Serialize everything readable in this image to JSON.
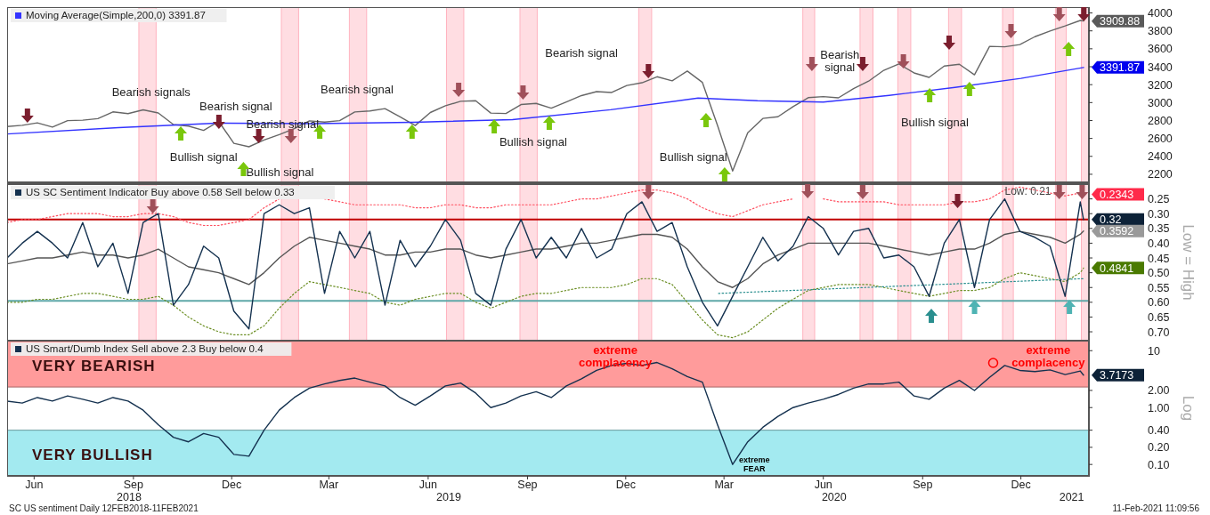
{
  "chart_data": [
    {
      "type": "line",
      "xlim": [
        "2018-05-21",
        "2021-02-16"
      ],
      "ylim": [
        2110,
        4065
      ],
      "yticks": [
        2200,
        2400,
        2600,
        2800,
        3000,
        3200,
        3400,
        3600,
        3800,
        4000
      ],
      "tick_labels": "y",
      "legend": "top left",
      "x": [
        "2018-05-21",
        "2018-06-04",
        "2018-06-18",
        "2018-07-02",
        "2018-07-16",
        "2018-07-30",
        "2018-08-13",
        "2018-08-27",
        "2018-09-10",
        "2018-09-24",
        "2018-10-08",
        "2018-10-22",
        "2018-11-05",
        "2018-11-19",
        "2018-12-03",
        "2018-12-17",
        "2018-12-31",
        "2019-01-14",
        "2019-01-28",
        "2019-02-11",
        "2019-02-25",
        "2019-03-11",
        "2019-03-25",
        "2019-04-08",
        "2019-04-22",
        "2019-05-06",
        "2019-05-20",
        "2019-06-03",
        "2019-06-17",
        "2019-07-01",
        "2019-07-15",
        "2019-07-29",
        "2019-08-12",
        "2019-08-26",
        "2019-09-09",
        "2019-09-23",
        "2019-10-07",
        "2019-10-21",
        "2019-11-04",
        "2019-11-18",
        "2019-12-02",
        "2019-12-16",
        "2019-12-30",
        "2020-01-13",
        "2020-01-27",
        "2020-02-10",
        "2020-02-24",
        "2020-03-09",
        "2020-03-23",
        "2020-04-06",
        "2020-04-20",
        "2020-05-04",
        "2020-05-18",
        "2020-06-01",
        "2020-06-15",
        "2020-06-29",
        "2020-07-13",
        "2020-07-27",
        "2020-08-10",
        "2020-08-24",
        "2020-09-07",
        "2020-09-21",
        "2020-10-05",
        "2020-10-19",
        "2020-11-02",
        "2020-11-16",
        "2020-11-30",
        "2020-12-14",
        "2020-12-28",
        "2021-01-11",
        "2021-01-25",
        "2021-02-08",
        "2021-02-11"
      ],
      "series": [
        {
          "color": "#666666",
          "values": [
            2733,
            2746,
            2774,
            2726,
            2798,
            2803,
            2821,
            2896,
            2877,
            2919,
            2884,
            2755,
            2738,
            2690,
            2790,
            2546,
            2507,
            2582,
            2643,
            2709,
            2796,
            2783,
            2798,
            2895,
            2907,
            2932,
            2840,
            2744,
            2889,
            2964,
            3014,
            3020,
            2883,
            2878,
            2978,
            2991,
            2938,
            3006,
            3078,
            3122,
            3113,
            3191,
            3221,
            3288,
            3243,
            3352,
            3225,
            2746,
            2237,
            2664,
            2823,
            2842,
            2954,
            3055,
            3066,
            3053,
            3155,
            3239,
            3360,
            3431,
            3331,
            3281,
            3408,
            3427,
            3310,
            3627,
            3622,
            3647,
            3735,
            3799,
            3855,
            3916,
            3909.88
          ]
        },
        {
          "name": "Moving Average(Simple,200,0) 3391.87",
          "color": "#3333ff",
          "x": [
            "2018-05-21",
            "2018-09-01",
            "2018-12-01",
            "2019-03-01",
            "2019-06-01",
            "2019-09-01",
            "2019-12-01",
            "2020-02-20",
            "2020-04-15",
            "2020-06-15",
            "2020-08-15",
            "2020-10-15",
            "2020-12-15",
            "2021-02-11"
          ],
          "values": [
            2650,
            2720,
            2770,
            2765,
            2780,
            2810,
            2920,
            3050,
            3020,
            3005,
            3080,
            3170,
            3270,
            3391.87
          ]
        }
      ],
      "bands": [
        {
          "axis": "x",
          "from": "2018-09-20",
          "to": "2018-10-06",
          "color": "#ffdde2"
        },
        {
          "axis": "x",
          "from": "2019-01-30",
          "to": "2019-02-15",
          "color": "#ffdde2"
        },
        {
          "axis": "x",
          "from": "2019-04-03",
          "to": "2019-04-19",
          "color": "#ffdde2"
        },
        {
          "axis": "x",
          "from": "2019-07-02",
          "to": "2019-07-18",
          "color": "#ffdde2"
        },
        {
          "axis": "x",
          "from": "2019-09-08",
          "to": "2019-09-24",
          "color": "#ffdde2"
        },
        {
          "axis": "x",
          "from": "2019-12-27",
          "to": "2020-01-08",
          "color": "#ffdde2"
        },
        {
          "axis": "x",
          "from": "2020-05-27",
          "to": "2020-06-07",
          "color": "#ffdde2"
        },
        {
          "axis": "x",
          "from": "2020-07-19",
          "to": "2020-07-31",
          "color": "#ffdde2"
        },
        {
          "axis": "x",
          "from": "2020-08-23",
          "to": "2020-09-04",
          "color": "#ffdde2"
        },
        {
          "axis": "x",
          "from": "2020-10-09",
          "to": "2020-10-21",
          "color": "#ffdde2"
        },
        {
          "axis": "x",
          "from": "2020-11-28",
          "to": "2020-12-08",
          "color": "#ffdde2"
        },
        {
          "axis": "x",
          "from": "2021-01-16",
          "to": "2021-01-26",
          "color": "#ffdde2"
        },
        {
          "axis": "x",
          "from": "2021-02-09",
          "to": "2021-02-16",
          "color": "#ffdde2"
        }
      ],
      "annotations": [
        "Bearish signals",
        "Bearish signal",
        "Bullish signal",
        "Bearish signal",
        "Bullish signal",
        "Bearish signal",
        "Bearish signal",
        "Bullish signal",
        "Bullish signal",
        "Bearish\nsignal",
        "Bullish signal",
        {
          "text": "3909.88",
          "x": "2021-02-11",
          "y": 3909.88
        },
        {
          "text": "3391.87",
          "x": "2021-02-11",
          "y": 3391.87
        }
      ]
    },
    {
      "type": "line",
      "xlim": [
        "2018-05-21",
        "2021-02-16"
      ],
      "ylim": [
        0.73,
        0.2
      ],
      "yticks": [
        0.25,
        {
          "value": 0.3,
          "label": "0.30"
        },
        0.35,
        {
          "value": 0.4,
          "label": "0.40"
        },
        0.45,
        {
          "value": 0.5,
          "label": "0.50"
        },
        0.55,
        {
          "value": 0.6,
          "label": "0.60"
        },
        0.65,
        {
          "value": 0.7,
          "label": "0.70"
        }
      ],
      "tick_labels": "y",
      "legend": "top left",
      "ylabel": "Low = High",
      "x": [
        "2018-05-21",
        "2018-06-04",
        "2018-06-18",
        "2018-07-02",
        "2018-07-16",
        "2018-07-30",
        "2018-08-13",
        "2018-08-27",
        "2018-09-10",
        "2018-09-24",
        "2018-10-08",
        "2018-10-22",
        "2018-11-05",
        "2018-11-19",
        "2018-12-03",
        "2018-12-17",
        "2018-12-31",
        "2019-01-14",
        "2019-01-28",
        "2019-02-11",
        "2019-02-25",
        "2019-03-11",
        "2019-03-25",
        "2019-04-08",
        "2019-04-22",
        "2019-05-06",
        "2019-05-20",
        "2019-06-03",
        "2019-06-17",
        "2019-07-01",
        "2019-07-15",
        "2019-07-29",
        "2019-08-12",
        "2019-08-26",
        "2019-09-09",
        "2019-09-23",
        "2019-10-07",
        "2019-10-21",
        "2019-11-04",
        "2019-11-18",
        "2019-12-02",
        "2019-12-16",
        "2019-12-30",
        "2020-01-13",
        "2020-01-27",
        "2020-02-10",
        "2020-02-24",
        "2020-03-09",
        "2020-03-23",
        "2020-04-06",
        "2020-04-20",
        "2020-05-04",
        "2020-05-18",
        "2020-06-01",
        "2020-06-15",
        "2020-06-29",
        "2020-07-13",
        "2020-07-27",
        "2020-08-10",
        "2020-08-24",
        "2020-09-07",
        "2020-09-21",
        "2020-10-05",
        "2020-10-19",
        "2020-11-02",
        "2020-11-16",
        "2020-11-30",
        "2020-12-14",
        "2020-12-28",
        "2021-01-11",
        "2021-01-25",
        "2021-02-08",
        "2021-02-11"
      ],
      "series": [
        {
          "color": "#ff4d5e",
          "line_style": "dotted",
          "values": [
            0.33,
            0.32,
            0.32,
            0.31,
            0.3,
            0.3,
            0.3,
            0.31,
            0.31,
            0.3,
            0.3,
            0.31,
            0.33,
            0.34,
            0.34,
            0.33,
            0.32,
            0.28,
            0.25,
            null,
            null,
            0.25,
            0.26,
            0.27,
            0.27,
            0.27,
            0.27,
            0.28,
            0.28,
            0.27,
            0.27,
            0.28,
            0.28,
            0.27,
            0.27,
            0.27,
            0.27,
            0.26,
            0.25,
            0.25,
            0.24,
            0.23,
            0.22,
            0.22,
            0.23,
            0.25,
            0.28,
            0.3,
            0.31,
            0.29,
            0.27,
            0.26,
            0.25,
            null,
            0.25,
            0.26,
            0.26,
            0.26,
            0.26,
            0.27,
            0.27,
            0.27,
            0.27,
            0.26,
            0.26,
            0.25,
            0.22,
            0.21,
            0.22,
            0.23,
            0.24,
            0.23,
            0.2343
          ]
        },
        {
          "color": "#6b8e23",
          "line_style": "dotted",
          "values": [
            0.6,
            0.6,
            0.59,
            0.59,
            0.58,
            0.57,
            0.57,
            0.58,
            0.59,
            0.59,
            0.58,
            0.61,
            0.65,
            0.68,
            0.7,
            0.71,
            0.71,
            0.68,
            0.62,
            0.57,
            0.53,
            0.54,
            0.55,
            0.56,
            0.57,
            0.6,
            0.61,
            0.59,
            0.58,
            0.57,
            0.57,
            0.6,
            0.62,
            0.6,
            0.58,
            0.57,
            0.57,
            0.56,
            0.55,
            0.55,
            0.55,
            0.54,
            0.52,
            0.52,
            0.54,
            0.6,
            0.66,
            0.71,
            0.72,
            0.7,
            0.66,
            0.62,
            0.59,
            0.56,
            0.55,
            0.54,
            0.54,
            0.54,
            0.55,
            0.56,
            0.57,
            0.58,
            0.57,
            0.56,
            0.56,
            0.55,
            0.52,
            0.5,
            0.51,
            0.52,
            0.53,
            0.5,
            0.4841
          ]
        },
        {
          "color": "#555555",
          "values": [
            0.47,
            0.46,
            0.45,
            0.45,
            0.44,
            0.43,
            0.44,
            0.44,
            0.45,
            0.44,
            0.42,
            0.45,
            0.48,
            0.49,
            0.5,
            0.52,
            0.54,
            0.5,
            0.45,
            0.41,
            0.38,
            0.39,
            0.4,
            0.41,
            0.42,
            0.44,
            0.44,
            0.43,
            0.43,
            0.42,
            0.42,
            0.44,
            0.45,
            0.44,
            0.43,
            0.42,
            0.42,
            0.41,
            0.4,
            0.4,
            0.39,
            0.38,
            0.37,
            0.37,
            0.38,
            0.42,
            0.48,
            0.53,
            0.55,
            0.52,
            0.47,
            0.44,
            0.42,
            0.4,
            0.4,
            0.4,
            0.4,
            0.4,
            0.41,
            0.42,
            0.43,
            0.44,
            0.43,
            0.42,
            0.42,
            0.4,
            0.37,
            0.36,
            0.37,
            0.38,
            0.4,
            0.37,
            0.3592
          ]
        },
        {
          "color": "#2a8f8f",
          "line_style": "dotted",
          "x": [
            "2020-03-10",
            "2021-02-11"
          ],
          "values": [
            0.57,
            0.52
          ]
        },
        {
          "name": "US SC Sentiment Indicator Buy above 0.58 Sell below 0.33",
          "color": "#14314f",
          "values": [
            0.45,
            0.4,
            0.36,
            0.4,
            0.45,
            0.33,
            0.48,
            0.4,
            0.57,
            0.33,
            0.3,
            0.61,
            0.54,
            0.41,
            0.45,
            0.63,
            0.69,
            0.3,
            0.27,
            0.3,
            0.28,
            0.57,
            0.36,
            0.45,
            0.36,
            0.61,
            0.39,
            0.48,
            0.41,
            0.32,
            0.39,
            0.57,
            0.61,
            0.42,
            0.32,
            0.45,
            0.38,
            0.45,
            0.35,
            0.45,
            0.42,
            0.3,
            0.26,
            0.36,
            0.33,
            0.48,
            0.6,
            0.68,
            0.58,
            0.48,
            0.38,
            0.46,
            0.41,
            0.31,
            0.35,
            0.44,
            0.36,
            0.35,
            0.45,
            0.44,
            0.48,
            0.58,
            0.4,
            0.32,
            0.55,
            0.32,
            0.25,
            0.36,
            0.38,
            0.41,
            0.58,
            0.26,
            0.32
          ]
        }
      ],
      "bands": [
        {
          "axis": "x",
          "from": "2018-09-20",
          "to": "2018-10-06",
          "color": "#ffdde2"
        },
        {
          "axis": "x",
          "from": "2019-01-30",
          "to": "2019-02-15",
          "color": "#ffdde2"
        },
        {
          "axis": "x",
          "from": "2019-04-03",
          "to": "2019-04-19",
          "color": "#ffdde2"
        },
        {
          "axis": "x",
          "from": "2019-07-02",
          "to": "2019-07-18",
          "color": "#ffdde2"
        },
        {
          "axis": "x",
          "from": "2019-09-08",
          "to": "2019-09-24",
          "color": "#ffdde2"
        },
        {
          "axis": "x",
          "from": "2019-12-27",
          "to": "2020-01-08",
          "color": "#ffdde2"
        },
        {
          "axis": "x",
          "from": "2020-05-27",
          "to": "2020-06-07",
          "color": "#ffdde2"
        },
        {
          "axis": "x",
          "from": "2020-07-19",
          "to": "2020-07-31",
          "color": "#ffdde2"
        },
        {
          "axis": "x",
          "from": "2020-08-23",
          "to": "2020-09-04",
          "color": "#ffdde2"
        },
        {
          "axis": "x",
          "from": "2020-10-09",
          "to": "2020-10-21",
          "color": "#ffdde2"
        },
        {
          "axis": "x",
          "from": "2020-11-28",
          "to": "2020-12-08",
          "color": "#ffdde2"
        },
        {
          "axis": "x",
          "from": "2021-01-16",
          "to": "2021-01-26",
          "color": "#ffdde2"
        },
        {
          "axis": "x",
          "from": "2021-02-09",
          "to": "2021-02-16",
          "color": "#ffdde2"
        }
      ],
      "ref_lines": [
        {
          "axis": "y",
          "value": 0.32,
          "color": "#c00000"
        },
        {
          "axis": "y",
          "value": 0.595,
          "color": "#5fa8a8"
        }
      ],
      "annotations": [
        "Low: 0.21",
        {
          "text": "0.2343",
          "x": "2021-02-11",
          "y": 0.2343
        },
        {
          "text": "0.32",
          "x": "2021-02-11",
          "y": 0.32
        },
        {
          "text": "0.3592",
          "x": "2021-02-11",
          "y": 0.3592
        },
        {
          "text": "0.4841",
          "x": "2021-02-11",
          "y": 0.4841
        }
      ]
    },
    {
      "type": "line",
      "log": true,
      "xlim": [
        "2018-05-21",
        "2021-02-16"
      ],
      "ylim": [
        0.063,
        15
      ],
      "yticks": [
        10,
        {
          "value": 2,
          "label": "2.00"
        },
        {
          "value": 1,
          "label": "1.00"
        },
        {
          "value": 0.4,
          "label": "0.40"
        },
        {
          "value": 0.2,
          "label": "0.20"
        },
        {
          "value": 0.1,
          "label": "0.10"
        }
      ],
      "legend": "top left",
      "ylabel": "Log",
      "x2lim": [
        "2018-05-21",
        "2021-02-16"
      ],
      "x2ticks": [
        {
          "value": "2018-09-11",
          "label": "2018"
        },
        {
          "value": "2019-07-04",
          "label": "2019"
        },
        {
          "value": "2020-06-25",
          "label": "2020"
        },
        {
          "value": "2021-01-31",
          "label": "2021"
        }
      ],
      "xticks": [
        {
          "value": "2018-06-15",
          "label": "Jun"
        },
        {
          "value": "2018-09-15",
          "label": "Sep"
        },
        {
          "value": "2018-12-15",
          "label": "Dec"
        },
        {
          "value": "2019-03-15",
          "label": "Mar"
        },
        {
          "value": "2019-06-15",
          "label": "Jun"
        },
        {
          "value": "2019-09-15",
          "label": "Sep"
        },
        {
          "value": "2019-12-15",
          "label": "Dec"
        },
        {
          "value": "2020-03-15",
          "label": "Mar"
        },
        {
          "value": "2020-06-15",
          "label": "Jun"
        },
        {
          "value": "2020-09-15",
          "label": "Sep"
        },
        {
          "value": "2020-12-15",
          "label": "Dec"
        }
      ],
      "x": [
        "2018-05-21",
        "2018-06-04",
        "2018-06-18",
        "2018-07-02",
        "2018-07-16",
        "2018-07-30",
        "2018-08-13",
        "2018-08-27",
        "2018-09-10",
        "2018-09-24",
        "2018-10-08",
        "2018-10-22",
        "2018-11-05",
        "2018-11-19",
        "2018-12-03",
        "2018-12-17",
        "2018-12-31",
        "2019-01-14",
        "2019-01-28",
        "2019-02-11",
        "2019-02-25",
        "2019-03-11",
        "2019-03-25",
        "2019-04-08",
        "2019-04-22",
        "2019-05-06",
        "2019-05-20",
        "2019-06-03",
        "2019-06-17",
        "2019-07-01",
        "2019-07-15",
        "2019-07-29",
        "2019-08-12",
        "2019-08-26",
        "2019-09-09",
        "2019-09-23",
        "2019-10-07",
        "2019-10-21",
        "2019-11-04",
        "2019-11-18",
        "2019-12-02",
        "2019-12-16",
        "2019-12-30",
        "2020-01-13",
        "2020-01-27",
        "2020-02-10",
        "2020-02-24",
        "2020-03-09",
        "2020-03-23",
        "2020-04-06",
        "2020-04-20",
        "2020-05-04",
        "2020-05-18",
        "2020-06-01",
        "2020-06-15",
        "2020-06-29",
        "2020-07-13",
        "2020-07-27",
        "2020-08-10",
        "2020-08-24",
        "2020-09-07",
        "2020-09-21",
        "2020-10-05",
        "2020-10-19",
        "2020-11-02",
        "2020-11-16",
        "2020-11-30",
        "2020-12-14",
        "2020-12-28",
        "2021-01-11",
        "2021-01-25",
        "2021-02-08",
        "2021-02-11"
      ],
      "series": [
        {
          "name": "US Smart/Dumb Index Sell above 2.3 Buy below 0.4",
          "color": "#14314f",
          "values": [
            1.3,
            1.2,
            1.5,
            1.3,
            1.6,
            1.4,
            1.2,
            1.5,
            1.3,
            0.9,
            0.5,
            0.3,
            0.25,
            0.35,
            0.3,
            0.15,
            0.14,
            0.4,
            0.9,
            1.5,
            2.2,
            2.6,
            3.0,
            3.3,
            2.8,
            2.4,
            1.5,
            1.1,
            1.6,
            2.4,
            2.7,
            1.8,
            1.0,
            1.2,
            1.6,
            1.9,
            1.5,
            2.4,
            3.2,
            4.5,
            5.5,
            6.0,
            5.5,
            6.2,
            4.8,
            3.5,
            2.8,
            0.5,
            0.1,
            0.25,
            0.45,
            0.7,
            1.0,
            1.2,
            1.4,
            1.7,
            2.2,
            2.6,
            2.6,
            2.8,
            1.6,
            1.4,
            2.2,
            3.0,
            2.0,
            3.4,
            5.5,
            4.5,
            4.3,
            4.6,
            3.8,
            4.4,
            3.7173
          ]
        }
      ],
      "bands": [
        {
          "axis": "y",
          "from": 2.3,
          "to": 15,
          "label": "VERY BEARISH",
          "color": "#ff9b9b"
        },
        {
          "axis": "y",
          "from": 0.063,
          "to": 0.4,
          "label": "VERY BULLISH",
          "color": "#a3eaf0"
        }
      ],
      "annotations": [
        "extreme\ncomplacency",
        "extreme\ncomplacency",
        "extreme\nFEAR",
        {
          "text": "3.7173",
          "x": "2021-02-11",
          "y": 3.7173
        },
        "SC US sentiment  Daily 12FEB2018-11FEB2021",
        "11-Feb-2021 11:09:56"
      ]
    }
  ]
}
